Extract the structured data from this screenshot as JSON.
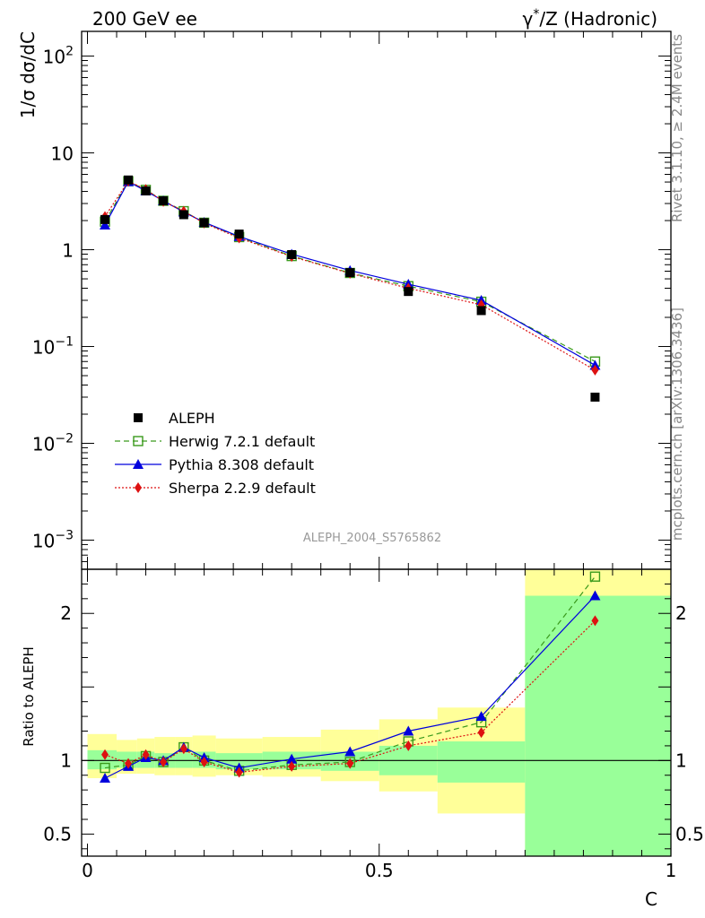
{
  "header": {
    "left": "200 GeV ee",
    "right": "γ*/Z (Hadronic)"
  },
  "side_labels": {
    "rivet": "Rivet 3.1.10, ≥ 2.4M events",
    "mcplots": "mcplots.cern.ch [arXiv:1306.3436]"
  },
  "chart_data": [
    {
      "type": "scatter",
      "panel": "main",
      "ylabel": "1/σ  dσ/dC",
      "yscale": "log",
      "ylim": [
        0.0005,
        180
      ],
      "xlim": [
        -0.01,
        1.0
      ],
      "yticks": [
        {
          "value": 0.001,
          "base": "10",
          "exp": "−3"
        },
        {
          "value": 0.01,
          "base": "10",
          "exp": "−2"
        },
        {
          "value": 0.1,
          "base": "10",
          "exp": "−1"
        },
        {
          "value": 1,
          "base": "1",
          "exp": ""
        },
        {
          "value": 10,
          "base": "10",
          "exp": ""
        },
        {
          "value": 100,
          "base": "10",
          "exp": "2"
        }
      ],
      "watermark": "ALEPH_2004_S5765862",
      "legend_position": "lower-left",
      "x": [
        0.03,
        0.07,
        0.1,
        0.13,
        0.165,
        0.2,
        0.26,
        0.35,
        0.45,
        0.55,
        0.675,
        0.87
      ],
      "series": [
        {
          "name": "ALEPH",
          "color": "#000000",
          "marker": "square",
          "values": [
            2.05,
            5.25,
            4.05,
            3.2,
            2.3,
            1.9,
            1.45,
            0.89,
            0.58,
            0.37,
            0.235,
            0.03
          ]
        },
        {
          "name": "Herwig 7.2.1 default",
          "color": "#3a9a1c",
          "marker": "open-square",
          "dash": "6,4",
          "values": [
            1.95,
            5.1,
            4.15,
            3.2,
            2.5,
            1.9,
            1.35,
            0.86,
            0.575,
            0.42,
            0.29,
            0.07
          ]
        },
        {
          "name": "Pythia 8.308 default",
          "color": "#0000dd",
          "marker": "triangle",
          "dash": "",
          "values": [
            1.8,
            5.05,
            4.05,
            3.2,
            2.45,
            1.92,
            1.37,
            0.9,
            0.61,
            0.44,
            0.3,
            0.064
          ]
        },
        {
          "name": "Sherpa 2.2.9 default",
          "color": "#dd1111",
          "marker": "diamond",
          "dash": "2,2",
          "values": [
            2.2,
            5.1,
            4.2,
            3.15,
            2.5,
            1.88,
            1.32,
            0.85,
            0.57,
            0.4,
            0.27,
            0.057
          ]
        }
      ]
    },
    {
      "type": "scatter",
      "panel": "ratio",
      "ylabel": "Ratio to ALEPH",
      "xlabel": "C",
      "ylim": [
        0.35,
        2.3
      ],
      "xlim": [
        -0.01,
        1.0
      ],
      "yticks": [
        {
          "value": 0.5,
          "label": "0.5"
        },
        {
          "value": 1,
          "label": "1"
        },
        {
          "value": 2,
          "label": "2"
        }
      ],
      "xticks": [
        {
          "value": 0,
          "label": "0"
        },
        {
          "value": 0.5,
          "label": "0.5"
        },
        {
          "value": 1,
          "label": "1"
        }
      ],
      "bands": [
        {
          "x0": 0.0,
          "x1": 0.05,
          "stat_lo": 0.94,
          "stat_hi": 1.07,
          "tot_lo": 0.88,
          "tot_hi": 1.18
        },
        {
          "x0": 0.05,
          "x1": 0.085,
          "stat_lo": 0.95,
          "stat_hi": 1.06,
          "tot_lo": 0.91,
          "tot_hi": 1.14
        },
        {
          "x0": 0.085,
          "x1": 0.115,
          "stat_lo": 0.95,
          "stat_hi": 1.06,
          "tot_lo": 0.91,
          "tot_hi": 1.15
        },
        {
          "x0": 0.115,
          "x1": 0.15,
          "stat_lo": 0.95,
          "stat_hi": 1.05,
          "tot_lo": 0.9,
          "tot_hi": 1.16
        },
        {
          "x0": 0.15,
          "x1": 0.18,
          "stat_lo": 0.95,
          "stat_hi": 1.05,
          "tot_lo": 0.9,
          "tot_hi": 1.16
        },
        {
          "x0": 0.18,
          "x1": 0.22,
          "stat_lo": 0.95,
          "stat_hi": 1.06,
          "tot_lo": 0.89,
          "tot_hi": 1.17
        },
        {
          "x0": 0.22,
          "x1": 0.3,
          "stat_lo": 0.94,
          "stat_hi": 1.05,
          "tot_lo": 0.9,
          "tot_hi": 1.15
        },
        {
          "x0": 0.3,
          "x1": 0.4,
          "stat_lo": 0.94,
          "stat_hi": 1.06,
          "tot_lo": 0.89,
          "tot_hi": 1.16
        },
        {
          "x0": 0.4,
          "x1": 0.5,
          "stat_lo": 0.93,
          "stat_hi": 1.06,
          "tot_lo": 0.86,
          "tot_hi": 1.21
        },
        {
          "x0": 0.5,
          "x1": 0.6,
          "stat_lo": 0.9,
          "stat_hi": 1.1,
          "tot_lo": 0.79,
          "tot_hi": 1.28
        },
        {
          "x0": 0.6,
          "x1": 0.75,
          "stat_lo": 0.85,
          "stat_hi": 1.13,
          "tot_lo": 0.64,
          "tot_hi": 1.36
        },
        {
          "x0": 0.75,
          "x1": 1.0,
          "stat_lo": 0.35,
          "stat_hi": 2.12,
          "tot_lo": 0.35,
          "tot_hi": 2.3
        }
      ],
      "x": [
        0.03,
        0.07,
        0.1,
        0.13,
        0.165,
        0.2,
        0.26,
        0.35,
        0.45,
        0.55,
        0.675,
        0.87
      ],
      "series": [
        {
          "name": "Herwig 7.2.1 default",
          "color": "#3a9a1c",
          "marker": "open-square",
          "dash": "6,4",
          "values": [
            0.95,
            0.97,
            1.03,
            0.99,
            1.09,
            1.0,
            0.93,
            0.97,
            0.99,
            1.13,
            1.26,
            2.25
          ]
        },
        {
          "name": "Pythia 8.308 default",
          "color": "#0000dd",
          "marker": "triangle",
          "dash": "",
          "values": [
            0.88,
            0.96,
            1.02,
            1.0,
            1.09,
            1.02,
            0.95,
            1.01,
            1.06,
            1.2,
            1.3,
            2.12
          ]
        },
        {
          "name": "Sherpa 2.2.9 default",
          "color": "#dd1111",
          "marker": "diamond",
          "dash": "2,2",
          "values": [
            1.04,
            0.98,
            1.04,
            0.99,
            1.08,
            0.99,
            0.92,
            0.96,
            0.98,
            1.1,
            1.19,
            1.95
          ]
        }
      ]
    }
  ]
}
